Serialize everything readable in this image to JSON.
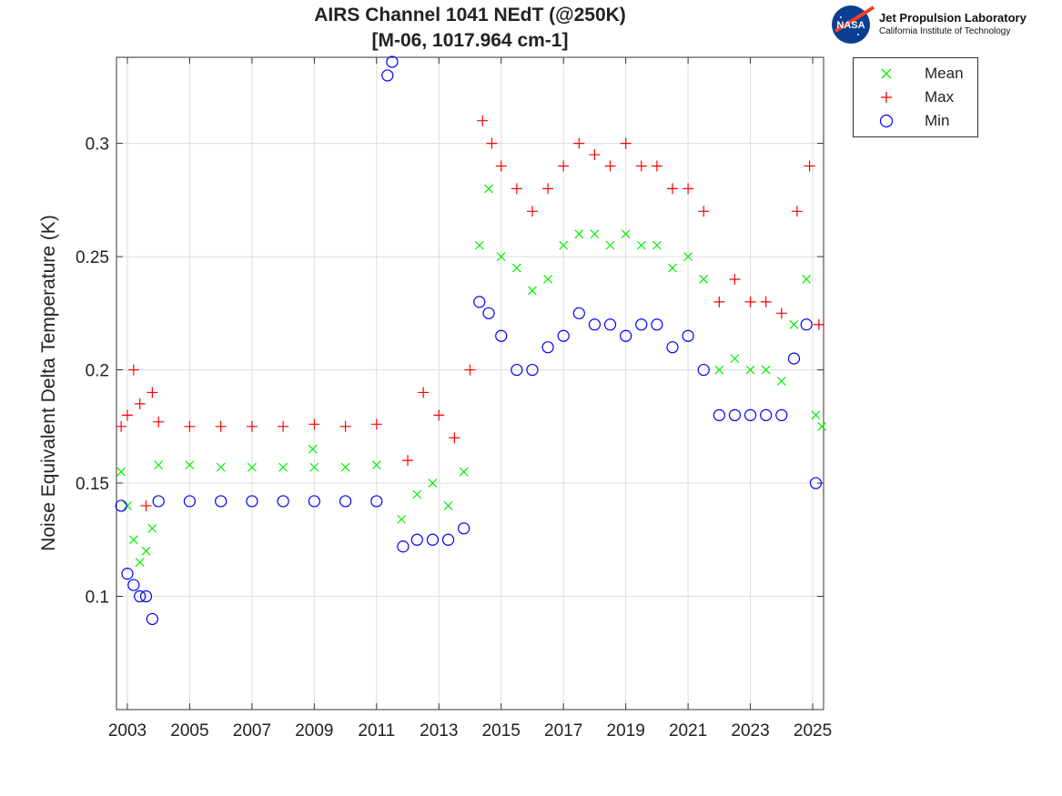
{
  "header": {
    "title_line1": "AIRS Channel 1041 NEdT (@250K)",
    "title_line2": "[M-06, 1017.964 cm-1]"
  },
  "logo": {
    "nasa_text": "NASA",
    "org_name": "Jet Propulsion Laboratory",
    "org_sub": "California Institute of Technology"
  },
  "colors": {
    "mean": "#00ee00",
    "max": "#ff0000",
    "min": "#0000ff",
    "grid": "#dcdcdc",
    "axis": "#333333"
  },
  "chart_data": {
    "type": "scatter",
    "title": "AIRS Channel 1041 NEdT (@250K) [M-06, 1017.964 cm-1]",
    "xlabel": "",
    "ylabel": "Noise Equivalent Delta Temperature (K)",
    "xlim": [
      2002.65,
      2025.35
    ],
    "ylim": [
      0.05,
      0.338
    ],
    "x_ticks": [
      2003,
      2005,
      2007,
      2009,
      2011,
      2013,
      2015,
      2017,
      2019,
      2021,
      2023,
      2025
    ],
    "x_tick_labels": [
      "2003",
      "2005",
      "2007",
      "2009",
      "2011",
      "2013",
      "2015",
      "2017",
      "2019",
      "2021",
      "2023",
      "2025"
    ],
    "y_ticks": [
      0.1,
      0.15,
      0.2,
      0.25,
      0.3
    ],
    "y_tick_labels": [
      "0.1",
      "0.15",
      "0.2",
      "0.25",
      "0.3"
    ],
    "grid": true,
    "legend_position": "outside top-right",
    "series": [
      {
        "name": "Mean",
        "marker": "x",
        "x": [
          2002.8,
          2003.0,
          2003.2,
          2003.4,
          2003.6,
          2003.8,
          2004.0,
          2005.0,
          2006.0,
          2007.0,
          2008.0,
          2008.95,
          2009.0,
          2010.0,
          2011.0,
          2011.8,
          2012.3,
          2012.8,
          2013.3,
          2013.8,
          2014.3,
          2014.6,
          2015.0,
          2015.5,
          2016.0,
          2016.5,
          2017.0,
          2017.5,
          2018.0,
          2018.5,
          2019.0,
          2019.5,
          2020.0,
          2020.5,
          2021.0,
          2021.5,
          2022.0,
          2022.5,
          2023.0,
          2023.5,
          2024.0,
          2024.4,
          2024.8,
          2025.1,
          2025.3
        ],
        "y": [
          0.155,
          0.14,
          0.125,
          0.115,
          0.12,
          0.13,
          0.158,
          0.158,
          0.157,
          0.157,
          0.157,
          0.165,
          0.157,
          0.157,
          0.158,
          0.134,
          0.145,
          0.15,
          0.14,
          0.155,
          0.255,
          0.28,
          0.25,
          0.245,
          0.235,
          0.24,
          0.255,
          0.26,
          0.26,
          0.255,
          0.26,
          0.255,
          0.255,
          0.245,
          0.25,
          0.24,
          0.2,
          0.205,
          0.2,
          0.2,
          0.195,
          0.22,
          0.24,
          0.18,
          0.175
        ]
      },
      {
        "name": "Max",
        "marker": "+",
        "x": [
          2002.8,
          2003.0,
          2003.2,
          2003.4,
          2003.6,
          2003.8,
          2004.0,
          2005.0,
          2006.0,
          2007.0,
          2008.0,
          2009.0,
          2010.0,
          2011.0,
          2012.0,
          2012.5,
          2013.0,
          2013.5,
          2014.0,
          2014.4,
          2014.7,
          2015.0,
          2015.5,
          2016.0,
          2016.5,
          2017.0,
          2017.5,
          2018.0,
          2018.5,
          2019.0,
          2019.5,
          2020.0,
          2020.5,
          2021.0,
          2021.5,
          2022.0,
          2022.5,
          2023.0,
          2023.5,
          2024.0,
          2024.5,
          2024.9,
          2025.2
        ],
        "y": [
          0.175,
          0.18,
          0.2,
          0.185,
          0.14,
          0.19,
          0.177,
          0.175,
          0.175,
          0.175,
          0.175,
          0.176,
          0.175,
          0.176,
          0.16,
          0.19,
          0.18,
          0.17,
          0.2,
          0.31,
          0.3,
          0.29,
          0.28,
          0.27,
          0.28,
          0.29,
          0.3,
          0.295,
          0.29,
          0.3,
          0.29,
          0.29,
          0.28,
          0.28,
          0.27,
          0.23,
          0.24,
          0.23,
          0.23,
          0.225,
          0.27,
          0.29,
          0.22
        ]
      },
      {
        "name": "Min",
        "marker": "o",
        "x": [
          2002.8,
          2003.0,
          2003.2,
          2003.4,
          2003.6,
          2003.8,
          2004.0,
          2005.0,
          2006.0,
          2007.0,
          2008.0,
          2009.0,
          2010.0,
          2011.0,
          2011.35,
          2011.5,
          2011.85,
          2012.3,
          2012.8,
          2013.3,
          2013.8,
          2014.3,
          2014.6,
          2015.0,
          2015.5,
          2016.0,
          2016.5,
          2017.0,
          2017.5,
          2018.0,
          2018.5,
          2019.0,
          2019.5,
          2020.0,
          2020.5,
          2021.0,
          2021.5,
          2022.0,
          2022.5,
          2023.0,
          2023.5,
          2024.0,
          2024.4,
          2024.8,
          2025.1
        ],
        "y": [
          0.14,
          0.11,
          0.105,
          0.1,
          0.1,
          0.09,
          0.142,
          0.142,
          0.142,
          0.142,
          0.142,
          0.142,
          0.142,
          0.142,
          0.33,
          0.336,
          0.122,
          0.125,
          0.125,
          0.125,
          0.13,
          0.23,
          0.225,
          0.215,
          0.2,
          0.2,
          0.21,
          0.215,
          0.225,
          0.22,
          0.22,
          0.215,
          0.22,
          0.22,
          0.21,
          0.215,
          0.2,
          0.18,
          0.18,
          0.18,
          0.18,
          0.18,
          0.205,
          0.22,
          0.15
        ]
      }
    ]
  }
}
